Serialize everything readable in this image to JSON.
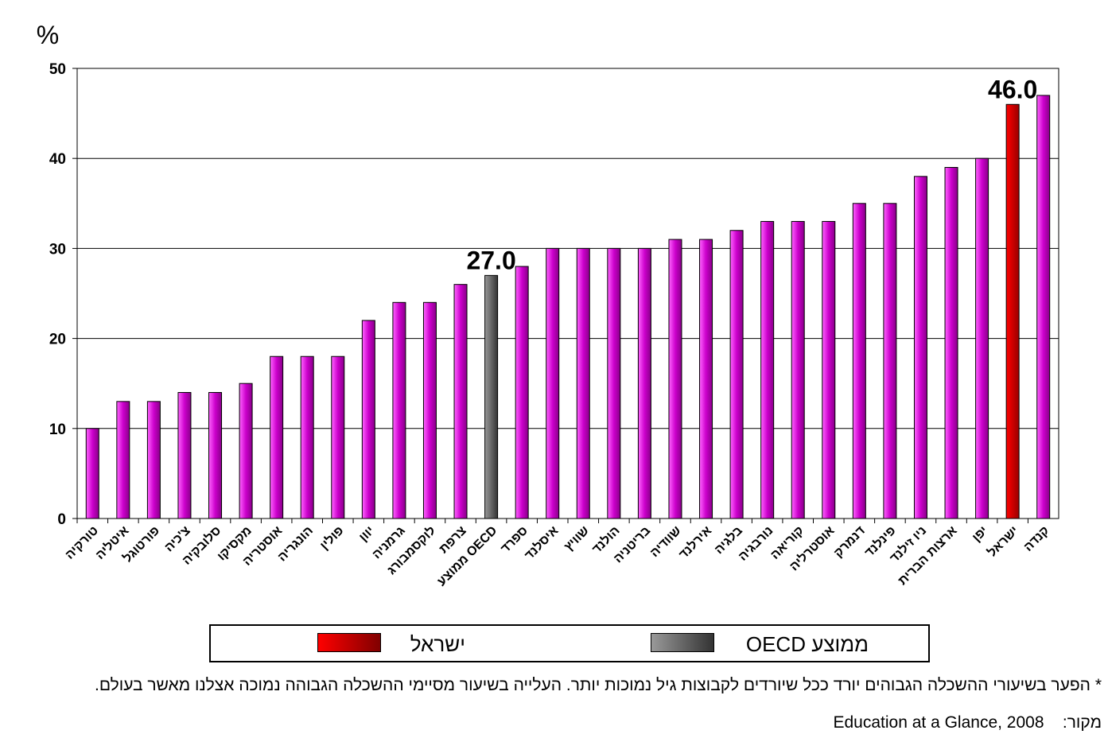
{
  "chart_data": {
    "type": "bar",
    "unit_label": "%",
    "ylim": [
      0,
      50
    ],
    "yticks": [
      0,
      10,
      20,
      30,
      40,
      50
    ],
    "grid": true,
    "categories": [
      "טורקיה",
      "איטליה",
      "פורטוגל",
      "צ'כיה",
      "סלובקיה",
      "מקסיקו",
      "אוסטריה",
      "הונגריה",
      "פולין",
      "יוון",
      "גרמניה",
      "לוקסמבורג",
      "צרפת",
      "ממוצע OECD",
      "ספרד",
      "איסלנד",
      "שוויץ",
      "הולנד",
      "בריטניה",
      "שוודיה",
      "אירלנד",
      "בלגיה",
      "נורבגיה",
      "קוריאה",
      "אוסטרליה",
      "דנמרק",
      "פינלנד",
      "ניו זילנד",
      "ארצות הברית",
      "יפן",
      "ישראל",
      "קנדה"
    ],
    "values": [
      10,
      13,
      13,
      14,
      14,
      15,
      18,
      18,
      18,
      22,
      24,
      24,
      26,
      27,
      28,
      30,
      30,
      30,
      30,
      31,
      31,
      32,
      33,
      33,
      33,
      35,
      35,
      38,
      39,
      40,
      46,
      47
    ],
    "highlights": [
      {
        "category": "ממוצע OECD",
        "color": "#666666",
        "label": "27.0"
      },
      {
        "category": "ישראל",
        "color": "#cc0000",
        "label": "46.0"
      }
    ],
    "default_color": "#cc00cc"
  },
  "legend": {
    "israel_label": "ישראל",
    "oecd_label": "ממוצע OECD",
    "israel_color": "#cc0000",
    "oecd_color": "#666666"
  },
  "footnote": "* הפער בשיעורי ההשכלה הגבוהים יורד ככל שיורדים לקבוצות גיל נמוכות יותר. העלייה בשיעור מסיימי ההשכלה הגבוהה נמוכה אצלנו מאשר בעולם.",
  "source": {
    "label": "מקור:",
    "text": "Education at a Glance, 2008"
  }
}
